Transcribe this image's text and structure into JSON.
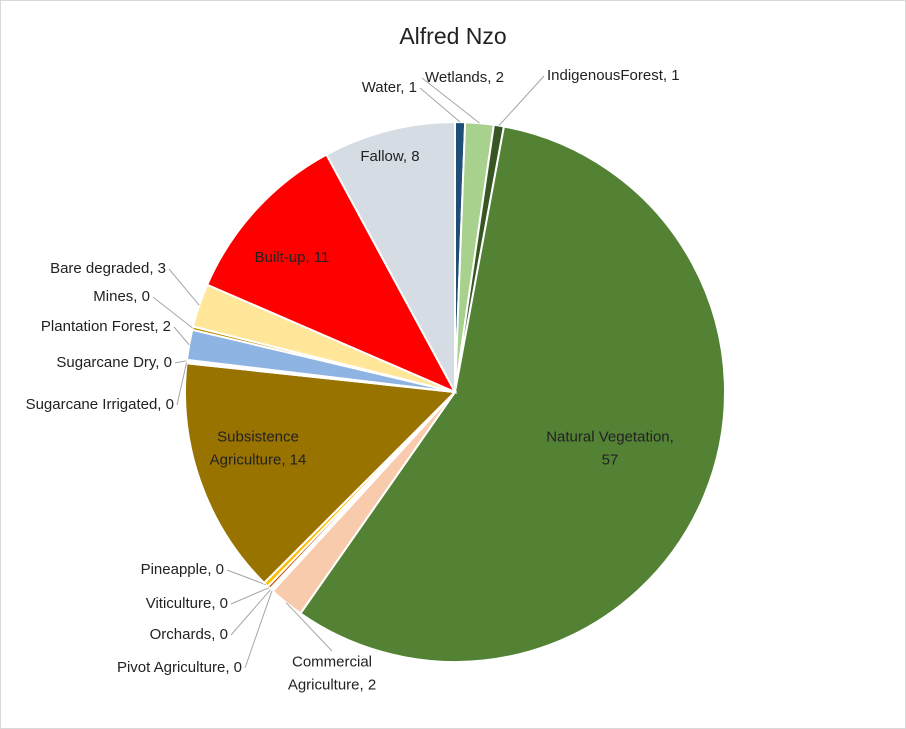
{
  "chart_data": {
    "type": "pie",
    "title": "Alfred Nzo",
    "labels": [
      "Water, 1",
      "Wetlands, 2",
      "IndigenousForest, 1",
      "Natural Vegetation,\n57",
      "Commercial\nAgriculture, 2",
      "Pivot  Agriculture, 0",
      "Orchards, 0",
      "Viticulture, 0",
      "Pineapple, 0",
      "Subsistence\nAgriculture, 14",
      "Sugarcane Irrigated, 0",
      "Sugarcane Dry, 0",
      "Plantation Forest, 2",
      "Mines, 0",
      "Bare degraded, 3",
      "Built-up, 11",
      "Fallow, 8"
    ],
    "values": [
      0.6,
      1.7,
      0.6,
      56.8,
      2.1,
      0.1,
      0.1,
      0.2,
      0.3,
      14.2,
      0.1,
      0.1,
      1.8,
      0.2,
      2.6,
      10.6,
      7.9
    ],
    "colors": [
      "#1f4e79",
      "#a9d18e",
      "#375623",
      "#548235",
      "#f8cbad",
      "#ffc000",
      "#ffd966",
      "#c55a11",
      "#ffc000",
      "#997300",
      "#2e75b6",
      "#9dc3e6",
      "#8eb4e3",
      "#bf9000",
      "#ffe699",
      "#ff0000",
      "#d6dce4"
    ]
  }
}
